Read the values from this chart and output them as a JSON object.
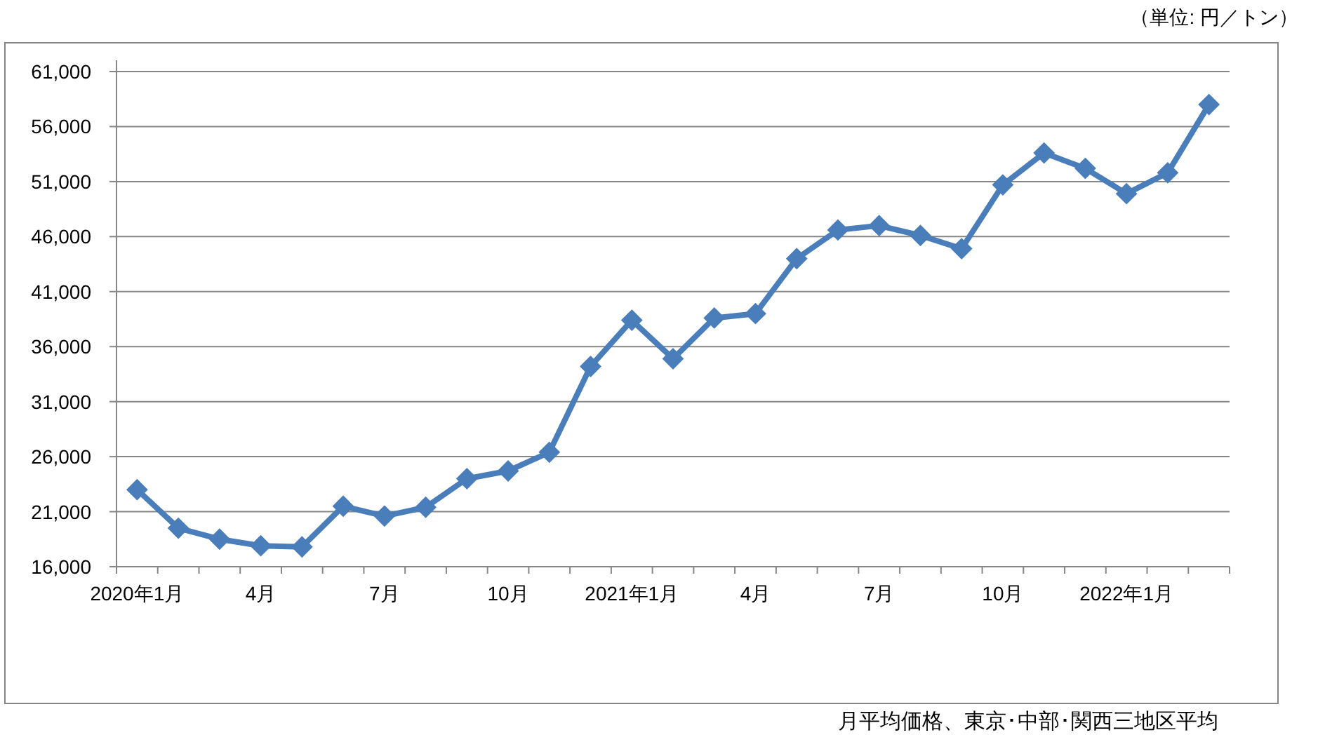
{
  "chart_data": {
    "type": "line",
    "categories": [
      "2020年1月",
      null,
      null,
      "4月",
      null,
      null,
      "7月",
      null,
      null,
      "10月",
      null,
      null,
      "2021年1月",
      null,
      null,
      "4月",
      null,
      null,
      "7月",
      null,
      null,
      "10月",
      null,
      null,
      "2022年1月",
      null,
      null
    ],
    "series": [
      {
        "color": "#4a7ebb",
        "values": [
          23000,
          19500,
          18500,
          17900,
          17800,
          21500,
          20600,
          21400,
          24000,
          24700,
          26400,
          34200,
          38400,
          34900,
          38600,
          39000,
          44000,
          46600,
          47000,
          46100,
          44900,
          50700,
          53600,
          52200,
          49900,
          51800,
          58000
        ]
      }
    ],
    "ylim": [
      16000,
      61000
    ],
    "yticks": [
      {
        "value": 16000,
        "label": "16,000"
      },
      {
        "value": 21000,
        "label": "21,000"
      },
      {
        "value": 26000,
        "label": "26,000"
      },
      {
        "value": 31000,
        "label": "31,000"
      },
      {
        "value": 36000,
        "label": "36,000"
      },
      {
        "value": 41000,
        "label": "41,000"
      },
      {
        "value": 46000,
        "label": "46,000"
      },
      {
        "value": 51000,
        "label": "51,000"
      },
      {
        "value": 56000,
        "label": "56,000"
      },
      {
        "value": 61000,
        "label": "61,000"
      }
    ],
    "grid": "y",
    "marker": "diamond",
    "line_style": "solid",
    "annotations": [
      "（単位: 円／トン）",
      "月平均価格、東京･中部･関西三地区平均"
    ]
  }
}
